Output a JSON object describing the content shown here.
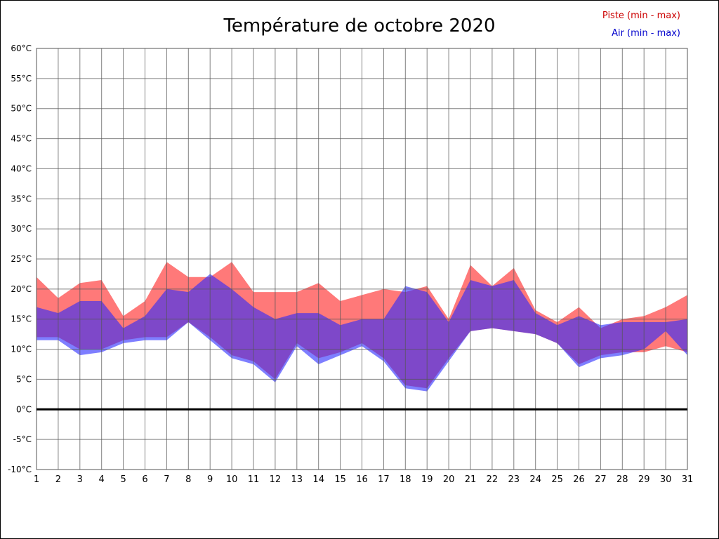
{
  "page": {
    "background": "#ffffff"
  },
  "chart_data": {
    "type": "area",
    "title": "Température de octobre 2020",
    "x": [
      1,
      2,
      3,
      4,
      5,
      6,
      7,
      8,
      9,
      10,
      11,
      12,
      13,
      14,
      15,
      16,
      17,
      18,
      19,
      20,
      21,
      22,
      23,
      24,
      25,
      26,
      27,
      28,
      29,
      30,
      31
    ],
    "xtick_labels": [
      "1",
      "2",
      "3",
      "4",
      "5",
      "6",
      "7",
      "8",
      "9",
      "10",
      "11",
      "12",
      "13",
      "14",
      "15",
      "16",
      "17",
      "18",
      "19",
      "20",
      "21",
      "22",
      "23",
      "24",
      "25",
      "26",
      "27",
      "28",
      "29",
      "30",
      "31"
    ],
    "ylim": [
      -10,
      60
    ],
    "ytick_step": 5,
    "ytick_labels": [
      "60°C",
      "55°C",
      "50°C",
      "45°C",
      "40°C",
      "35°C",
      "30°C",
      "25°C",
      "20°C",
      "15°C",
      "10°C",
      "5°C",
      "0°C",
      "-5°C",
      "-10°C"
    ],
    "grid": true,
    "zero_line_at": 0,
    "legend_position": "top-right",
    "series": [
      {
        "name": "Piste (min - max)",
        "band_color": "#ff2020",
        "band_opacity": 0.6,
        "label_color": "#cc0000",
        "min": [
          12,
          12,
          10,
          10,
          11.5,
          12,
          12,
          14.5,
          12,
          9,
          8,
          5,
          11,
          8.5,
          9.5,
          11,
          8.5,
          4,
          3.5,
          8.5,
          13,
          13.5,
          13,
          12.5,
          11,
          7.5,
          9,
          9.5,
          9.5,
          10.5,
          9.5
        ],
        "max": [
          22,
          18.5,
          21,
          21.5,
          15.5,
          18,
          24.5,
          22,
          22,
          24.5,
          19.5,
          19.5,
          19.5,
          21,
          18,
          19,
          20,
          19.5,
          20.5,
          15,
          24,
          20.5,
          23.5,
          16.5,
          14.5,
          17,
          13.5,
          15,
          15.5,
          17,
          19
        ]
      },
      {
        "name": "Air (min - max)",
        "band_color": "#2828ff",
        "band_opacity": 0.6,
        "label_color": "#0000cc",
        "min": [
          11.5,
          11.5,
          9,
          9.5,
          11,
          11.5,
          11.5,
          14.5,
          11.5,
          8.5,
          7.5,
          4.5,
          10.5,
          7.5,
          9,
          10.5,
          8,
          3.5,
          3,
          8,
          13,
          13.5,
          13,
          12.5,
          11,
          7,
          8.5,
          9,
          10,
          13,
          9
        ],
        "max": [
          17,
          16,
          18,
          18,
          13.5,
          15.5,
          20,
          19.5,
          22.5,
          20,
          17,
          15,
          16,
          16,
          14,
          15,
          15,
          20.5,
          19.5,
          14.5,
          21.5,
          20.5,
          21.5,
          16,
          14,
          15.5,
          14,
          14.5,
          14.5,
          14.5,
          15
        ]
      }
    ]
  }
}
